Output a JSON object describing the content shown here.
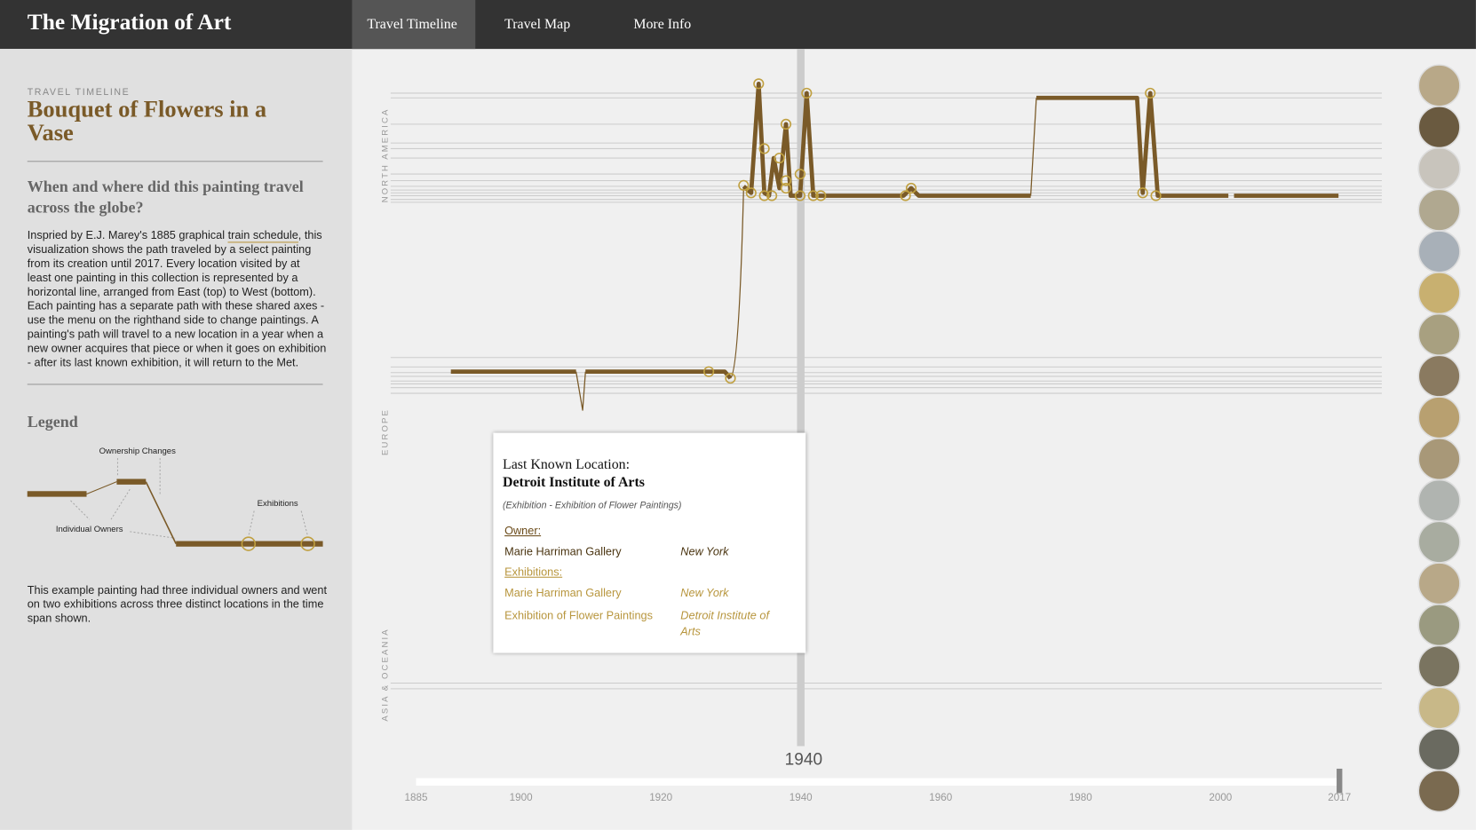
{
  "header": {
    "title": "The Migration of Art",
    "nav": [
      "Travel Timeline",
      "Travel Map",
      "More Info"
    ]
  },
  "sidebar": {
    "eyebrow": "TRAVEL TIMELINE",
    "title": "Bouquet of Flowers in a Vase",
    "question": "When and where did this painting travel across the globe?",
    "intro": {
      "before": "Inspried by E.J. Marey's 1885 graphical ",
      "link": "train schedule",
      "after": ", this visualization shows the path traveled by a select painting from its creation until 2017. Every location visited by at least one painting in this collection is represented by a horizontal line, arranged from East (top) to West (bottom). Each painting has a separate path with these shared axes - use the menu on the righthand side to change paintings. A painting's path will travel to a new location in a year when a new owner acquires that piece or when it goes on exhibition - after its last known exhibition, it will return to the Met."
    },
    "legend": {
      "title": "Legend",
      "ownership": "Ownership Changes",
      "exhibitions": "Exhibitions",
      "owners": "Individual Owners"
    },
    "example": "This example painting had three individual owners and went on two exhibitions across three distinct locations in the time span shown."
  },
  "timeline": {
    "regions": [
      "NORTH AMERICA",
      "EUROPE",
      "ASIA & OCEANIA"
    ],
    "selected_year": 1940,
    "xlim": [
      1885,
      2017
    ],
    "xticks": [
      1885,
      1900,
      1920,
      1940,
      1960,
      1980,
      2000,
      2017
    ],
    "tooltip": {
      "heading": "Last Known Location:",
      "location": "Detroit Institute of Arts",
      "note": "(Exhibition - Exhibition of Flower Paintings)",
      "owner_label": "Owner:",
      "owner": {
        "name": "Marie Harriman Gallery",
        "place": "New York"
      },
      "exhibitions_label": "Exhibitions:",
      "exhibitions": [
        {
          "name": "Marie Harriman Gallery",
          "place": "New York"
        },
        {
          "name": "Exhibition of Flower Paintings",
          "place": "Detroit Institute of Arts"
        }
      ]
    }
  }
}
